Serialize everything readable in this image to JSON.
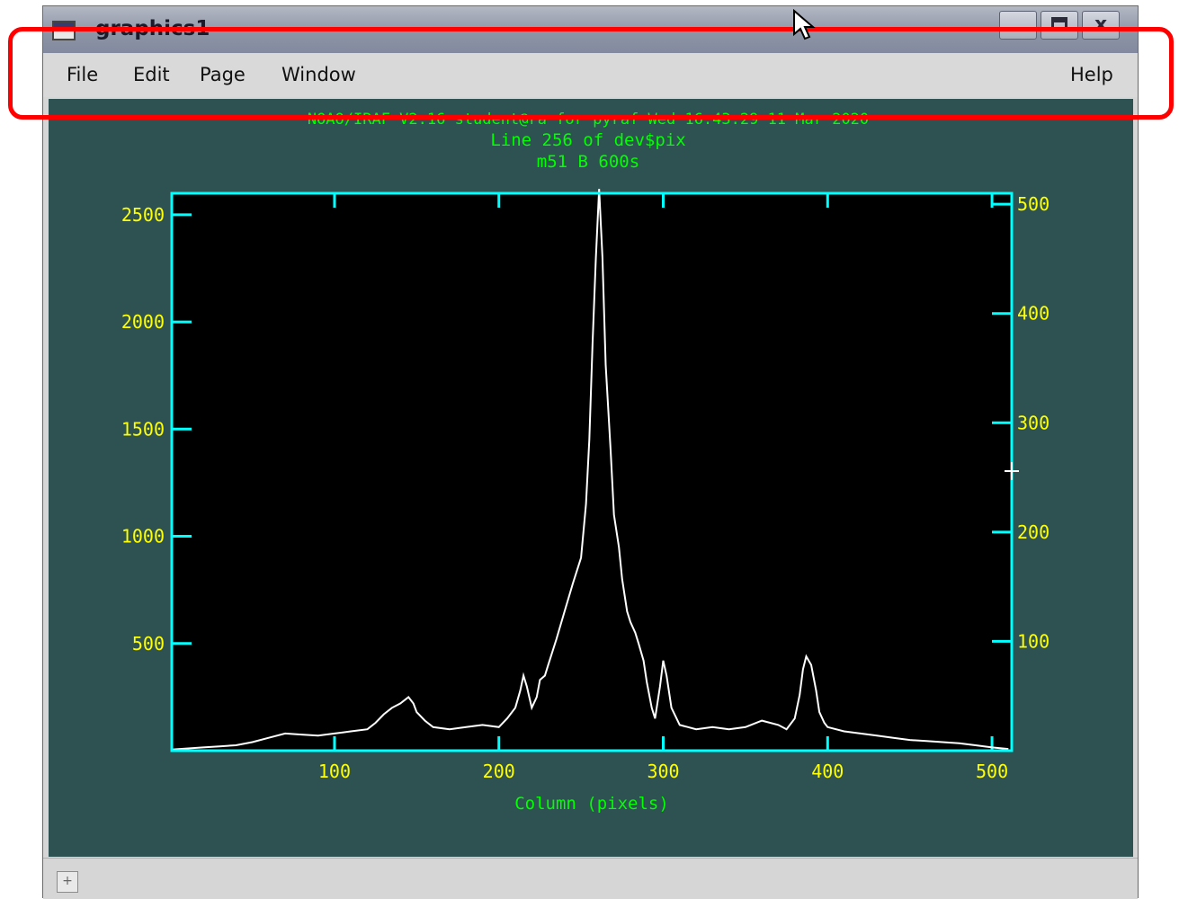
{
  "window": {
    "title": "graphics1",
    "controls": [
      "minimize-icon",
      "maximize-icon",
      "close-icon"
    ],
    "close_glyph": "x"
  },
  "menubar": {
    "items": [
      "File",
      "Edit",
      "Page",
      "Window"
    ],
    "help": "Help"
  },
  "plot": {
    "header_lines": [
      "NOAO/IRAF V2.16 student@ra for pyraf Wed 16:43:29 11 Mar 2020",
      "Line 256 of dev$pix",
      "m51  B  600s"
    ],
    "colors": {
      "background": "#2e5151",
      "frame": "#00ffff",
      "tick_labels": "#ffff00",
      "titles": "#00ff00",
      "trace": "#ffffff",
      "plot_area": "#000000"
    }
  },
  "chart_data": {
    "type": "line",
    "title": "Line 256 of dev$pix",
    "subtitle": "m51  B  600s",
    "xlabel": "Column (pixels)",
    "ylabel": "",
    "xlim": [
      1,
      512
    ],
    "ylim": [
      0,
      2600
    ],
    "y2lim": [
      0,
      510
    ],
    "x_ticks": [
      100,
      200,
      300,
      400,
      500
    ],
    "y_ticks": [
      500,
      1000,
      1500,
      2000,
      2500
    ],
    "y2_ticks": [
      100,
      200,
      300,
      400,
      500
    ],
    "grid": false,
    "series": [
      {
        "x": [
          1,
          10,
          20,
          30,
          40,
          50,
          60,
          70,
          80,
          90,
          100,
          110,
          120,
          125,
          130,
          135,
          140,
          145,
          148,
          150,
          155,
          160,
          170,
          180,
          190,
          200,
          205,
          210,
          213,
          215,
          217,
          220,
          223,
          225,
          228,
          230,
          235,
          240,
          245,
          250,
          253,
          255,
          257,
          259,
          261,
          263,
          265,
          268,
          270,
          273,
          275,
          278,
          280,
          283,
          285,
          288,
          290,
          293,
          295,
          298,
          300,
          302,
          305,
          310,
          320,
          330,
          340,
          350,
          360,
          370,
          375,
          380,
          383,
          385,
          387,
          390,
          393,
          395,
          398,
          400,
          410,
          420,
          430,
          440,
          450,
          460,
          470,
          480,
          490,
          500,
          510
        ],
        "y": [
          5,
          10,
          15,
          20,
          25,
          40,
          60,
          80,
          75,
          70,
          80,
          90,
          100,
          130,
          170,
          200,
          220,
          250,
          220,
          180,
          140,
          110,
          100,
          110,
          120,
          110,
          150,
          200,
          280,
          350,
          300,
          200,
          250,
          330,
          350,
          400,
          520,
          650,
          780,
          900,
          1150,
          1450,
          1900,
          2300,
          2620,
          2300,
          1800,
          1400,
          1100,
          950,
          800,
          650,
          600,
          550,
          500,
          420,
          320,
          200,
          150,
          300,
          420,
          350,
          200,
          120,
          100,
          110,
          100,
          110,
          140,
          120,
          100,
          150,
          260,
          380,
          440,
          400,
          280,
          180,
          130,
          110,
          90,
          80,
          70,
          60,
          50,
          45,
          40,
          35,
          25,
          15,
          8
        ]
      }
    ]
  }
}
